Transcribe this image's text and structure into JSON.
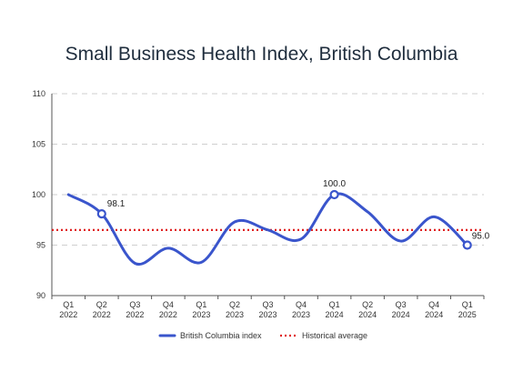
{
  "chart_data": {
    "type": "line",
    "title": "Small Business Health Index, British Columbia",
    "categories": [
      [
        "Q1",
        "2022"
      ],
      [
        "Q2",
        "2022"
      ],
      [
        "Q3",
        "2022"
      ],
      [
        "Q4",
        "2022"
      ],
      [
        "Q1",
        "2023"
      ],
      [
        "Q2",
        "2023"
      ],
      [
        "Q3",
        "2023"
      ],
      [
        "Q4",
        "2023"
      ],
      [
        "Q1",
        "2024"
      ],
      [
        "Q2",
        "2024"
      ],
      [
        "Q3",
        "2024"
      ],
      [
        "Q4",
        "2024"
      ],
      [
        "Q1",
        "2025"
      ]
    ],
    "series": [
      {
        "name": "British Columbia index",
        "color": "#3a55cc",
        "values": [
          100.0,
          98.1,
          93.2,
          94.7,
          93.3,
          97.3,
          96.5,
          95.6,
          100.0,
          98.3,
          95.4,
          97.8,
          95.0
        ]
      }
    ],
    "reference_line": {
      "name": "Historical average",
      "value": 96.5,
      "color": "#e02020",
      "style": "dotted"
    },
    "labeled_points": [
      {
        "index": 1,
        "label": "98.1"
      },
      {
        "index": 8,
        "label": "100.0"
      },
      {
        "index": 12,
        "label": "95.0"
      }
    ],
    "ylim": [
      90,
      110
    ],
    "yticks": [
      90,
      95,
      100,
      105,
      110
    ],
    "grid": "horizontal dashed",
    "legend_position": "bottom"
  }
}
